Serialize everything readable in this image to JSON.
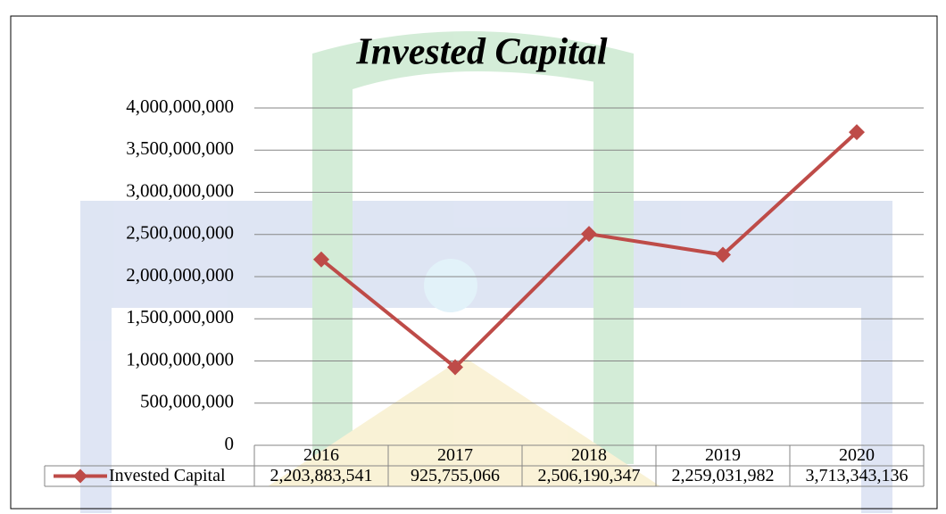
{
  "chart_data": {
    "type": "line",
    "title": "Invested Capital",
    "categories": [
      "2016",
      "2017",
      "2018",
      "2019",
      "2020"
    ],
    "series": [
      {
        "name": "Invested Capital",
        "color": "#be4b48",
        "values": [
          2203883541,
          925755066,
          2506190347,
          2259031982,
          3713343136
        ],
        "value_labels": [
          "2,203,883,541",
          "925,755,066",
          "2,506,190,347",
          "2,259,031,982",
          "3,713,343,136"
        ]
      }
    ],
    "ylim": [
      0,
      4000000000
    ],
    "yticks": [
      0,
      {
        "value": 500000000,
        "label": "500,000,000"
      },
      {
        "value": 1000000000,
        "label": "1,000,000,000"
      },
      {
        "value": 1500000000,
        "label": "1,500,000,000"
      },
      {
        "value": 2000000000,
        "label": "2,000,000,000"
      },
      {
        "value": 2500000000,
        "label": "2,500,000,000"
      },
      {
        "value": 3000000000,
        "label": "3,000,000,000"
      },
      {
        "value": 3500000000,
        "label": "3,500,000,000"
      },
      {
        "value": 4000000000,
        "label": "4,000,000,000"
      }
    ],
    "grid": true
  }
}
